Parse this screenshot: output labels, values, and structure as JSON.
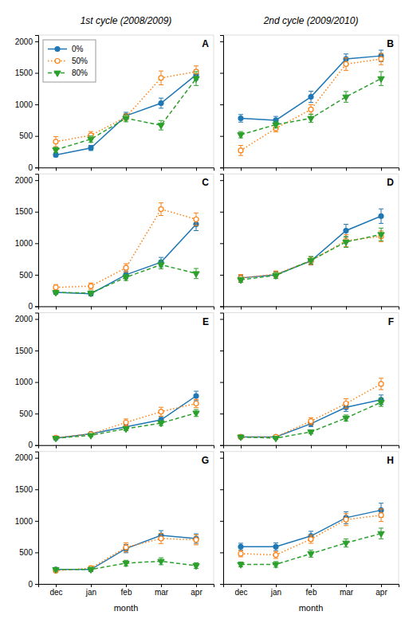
{
  "chart_data": [
    {
      "type": "line",
      "title": "1st cycle (2008/2009)",
      "annotations": [
        "A"
      ],
      "categories": [
        "dec",
        "jan",
        "feb",
        "mar",
        "apr"
      ],
      "series": [
        {
          "name": "0%",
          "marker": "circle",
          "line_style": "solid",
          "values": [
            200,
            310,
            820,
            1020,
            1470
          ],
          "errors": [
            30,
            40,
            55,
            80,
            80
          ]
        },
        {
          "name": "50%",
          "marker": "open-circle",
          "line_style": "dotted",
          "values": [
            410,
            510,
            800,
            1420,
            1520
          ],
          "errors": [
            80,
            60,
            50,
            110,
            90
          ]
        },
        {
          "name": "80%",
          "marker": "triangle-down",
          "line_style": "dashed",
          "values": [
            280,
            450,
            780,
            670,
            1410
          ],
          "errors": [
            40,
            50,
            55,
            75,
            110
          ]
        }
      ],
      "ylim": [
        0,
        2100
      ],
      "yticks": [
        0,
        500,
        1000,
        1500,
        2000
      ],
      "tick_labels": "y",
      "legend": "upper left"
    },
    {
      "type": "line",
      "title": "2nd cycle (2009/2010)",
      "annotations": [
        "B"
      ],
      "categories": [
        "dec",
        "jan",
        "feb",
        "mar",
        "apr"
      ],
      "series": [
        {
          "name": "0%",
          "marker": "circle",
          "line_style": "solid",
          "values": [
            780,
            750,
            1120,
            1720,
            1770
          ],
          "errors": [
            60,
            60,
            90,
            80,
            90
          ]
        },
        {
          "name": "50%",
          "marker": "open-circle",
          "line_style": "dotted",
          "values": [
            270,
            620,
            920,
            1640,
            1720
          ],
          "errors": [
            80,
            55,
            75,
            100,
            90
          ]
        },
        {
          "name": "80%",
          "marker": "triangle-down",
          "line_style": "dashed",
          "values": [
            520,
            680,
            780,
            1120,
            1410
          ],
          "errors": [
            50,
            55,
            65,
            85,
            110
          ]
        }
      ],
      "ylim": [
        0,
        2100
      ],
      "yticks": [
        0,
        500,
        1000,
        1500,
        2000
      ],
      "tick_labels": false
    },
    {
      "type": "line",
      "annotations": [
        "C"
      ],
      "categories": [
        "dec",
        "jan",
        "feb",
        "mar",
        "apr"
      ],
      "series": [
        {
          "name": "0%",
          "marker": "circle",
          "line_style": "solid",
          "values": [
            220,
            200,
            500,
            700,
            1300
          ],
          "errors": [
            30,
            35,
            60,
            75,
            100
          ]
        },
        {
          "name": "50%",
          "marker": "open-circle",
          "line_style": "dotted",
          "values": [
            300,
            320,
            610,
            1540,
            1380
          ],
          "errors": [
            45,
            50,
            65,
            100,
            100
          ]
        },
        {
          "name": "80%",
          "marker": "triangle-down",
          "line_style": "dashed",
          "values": [
            220,
            210,
            460,
            660,
            520
          ],
          "errors": [
            30,
            35,
            50,
            65,
            80
          ]
        }
      ],
      "ylim": [
        0,
        2100
      ],
      "yticks": [
        0,
        500,
        1000,
        1500,
        2000
      ],
      "tick_labels": "y"
    },
    {
      "type": "line",
      "annotations": [
        "D"
      ],
      "categories": [
        "dec",
        "jan",
        "feb",
        "mar",
        "apr"
      ],
      "series": [
        {
          "name": "0%",
          "marker": "circle",
          "line_style": "solid",
          "values": [
            450,
            500,
            720,
            1200,
            1430
          ],
          "errors": [
            45,
            55,
            65,
            100,
            115
          ]
        },
        {
          "name": "50%",
          "marker": "open-circle",
          "line_style": "dotted",
          "values": [
            450,
            510,
            720,
            1040,
            1110
          ],
          "errors": [
            55,
            50,
            60,
            95,
            85
          ]
        },
        {
          "name": "80%",
          "marker": "triangle-down",
          "line_style": "dashed",
          "values": [
            420,
            490,
            730,
            1020,
            1140
          ],
          "errors": [
            40,
            50,
            60,
            85,
            100
          ]
        }
      ],
      "ylim": [
        0,
        2100
      ],
      "yticks": [
        0,
        500,
        1000,
        1500,
        2000
      ],
      "tick_labels": false
    },
    {
      "type": "line",
      "annotations": [
        "E"
      ],
      "categories": [
        "dec",
        "jan",
        "feb",
        "mar",
        "apr"
      ],
      "series": [
        {
          "name": "0%",
          "marker": "circle",
          "line_style": "solid",
          "values": [
            110,
            180,
            290,
            400,
            780
          ],
          "errors": [
            15,
            25,
            40,
            50,
            75
          ]
        },
        {
          "name": "50%",
          "marker": "open-circle",
          "line_style": "dotted",
          "values": [
            120,
            175,
            360,
            530,
            660
          ],
          "errors": [
            15,
            25,
            55,
            70,
            65
          ]
        },
        {
          "name": "80%",
          "marker": "triangle-down",
          "line_style": "dashed",
          "values": [
            110,
            155,
            260,
            350,
            510
          ],
          "errors": [
            15,
            20,
            30,
            40,
            55
          ]
        }
      ],
      "ylim": [
        0,
        2100
      ],
      "yticks": [
        0,
        500,
        1000,
        1500,
        2000
      ],
      "tick_labels": "y"
    },
    {
      "type": "line",
      "annotations": [
        "F"
      ],
      "categories": [
        "dec",
        "jan",
        "feb",
        "mar",
        "apr"
      ],
      "series": [
        {
          "name": "0%",
          "marker": "circle",
          "line_style": "solid",
          "values": [
            130,
            130,
            340,
            600,
            720
          ],
          "errors": [
            18,
            25,
            45,
            65,
            75
          ]
        },
        {
          "name": "50%",
          "marker": "open-circle",
          "line_style": "dotted",
          "values": [
            130,
            130,
            380,
            660,
            970
          ],
          "errors": [
            18,
            25,
            55,
            75,
            90
          ]
        },
        {
          "name": "80%",
          "marker": "triangle-down",
          "line_style": "dashed",
          "values": [
            130,
            110,
            210,
            430,
            680
          ],
          "errors": [
            18,
            18,
            28,
            48,
            65
          ]
        }
      ],
      "ylim": [
        0,
        2100
      ],
      "yticks": [
        0,
        500,
        1000,
        1500,
        2000
      ],
      "tick_labels": false
    },
    {
      "type": "line",
      "annotations": [
        "G"
      ],
      "xlabel": "month",
      "categories": [
        "dec",
        "jan",
        "feb",
        "mar",
        "apr"
      ],
      "series": [
        {
          "name": "0%",
          "marker": "circle",
          "line_style": "solid",
          "values": [
            230,
            230,
            560,
            770,
            720
          ],
          "errors": [
            28,
            35,
            65,
            75,
            75
          ]
        },
        {
          "name": "50%",
          "marker": "open-circle",
          "line_style": "dotted",
          "values": [
            210,
            250,
            580,
            720,
            700
          ],
          "errors": [
            28,
            35,
            70,
            80,
            80
          ]
        },
        {
          "name": "80%",
          "marker": "triangle-down",
          "line_style": "dashed",
          "values": [
            230,
            230,
            330,
            360,
            290
          ],
          "errors": [
            28,
            35,
            45,
            55,
            45
          ]
        }
      ],
      "ylim": [
        0,
        2100
      ],
      "yticks": [
        0,
        500,
        1000,
        1500,
        2000
      ]
    },
    {
      "type": "line",
      "annotations": [
        "H"
      ],
      "xlabel": "month",
      "categories": [
        "dec",
        "jan",
        "feb",
        "mar",
        "apr"
      ],
      "series": [
        {
          "name": "0%",
          "marker": "circle",
          "line_style": "solid",
          "values": [
            590,
            590,
            760,
            1050,
            1170
          ],
          "errors": [
            55,
            60,
            75,
            95,
            110
          ]
        },
        {
          "name": "50%",
          "marker": "open-circle",
          "line_style": "dotted",
          "values": [
            480,
            460,
            710,
            1020,
            1090
          ],
          "errors": [
            50,
            55,
            65,
            95,
            100
          ]
        },
        {
          "name": "80%",
          "marker": "triangle-down",
          "line_style": "dashed",
          "values": [
            310,
            310,
            480,
            650,
            800
          ],
          "errors": [
            38,
            45,
            55,
            65,
            85
          ]
        }
      ],
      "ylim": [
        0,
        2100
      ],
      "yticks": [
        0,
        500,
        1000,
        1500,
        2000
      ],
      "tick_labels": "x"
    }
  ]
}
